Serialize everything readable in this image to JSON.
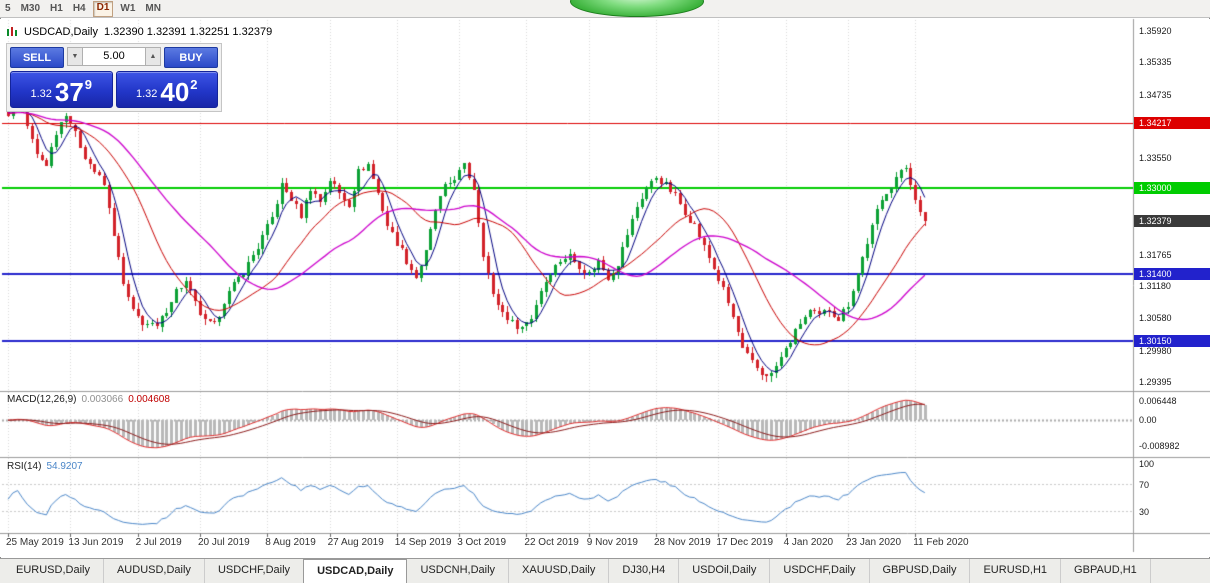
{
  "toolbar": {
    "timeframes": [
      "5",
      "M30",
      "H1",
      "H4",
      "D1",
      "W1",
      "MN"
    ],
    "active_timeframe": "D1"
  },
  "window": {
    "title_symbol": "USDCAD,Daily",
    "title_ohlc": "1.32390 1.32391 1.32251 1.32379"
  },
  "trade_panel": {
    "sell_label": "SELL",
    "buy_label": "BUY",
    "volume": "5.00",
    "volume_down_icon": "▼",
    "volume_up_icon": "▲",
    "sell_price": {
      "prefix": "1.32",
      "big": "37",
      "sup": "9"
    },
    "buy_price": {
      "prefix": "1.32",
      "big": "40",
      "sup": "2"
    }
  },
  "chart_data": {
    "type": "candlestick",
    "symbol": "USDCAD",
    "timeframe": "Daily",
    "current_bar": {
      "open": "1.32390",
      "high": "1.32391",
      "low": "1.32251",
      "close": "1.32379"
    },
    "y_axis": {
      "top_price": 1.3592,
      "bottom_price": 1.29395,
      "ticks": [
        "1.35920",
        "1.35335",
        "1.34735",
        "1.33550",
        "1.31765",
        "1.31180",
        "1.30580",
        "1.29980",
        "1.29395"
      ]
    },
    "price_lines": [
      {
        "label": "1.34217",
        "price": 1.34217,
        "color": "#dd0000",
        "width": 1
      },
      {
        "label": "1.33000",
        "price": 1.33,
        "color": "#00cc00",
        "width": 2
      },
      {
        "label": "1.31400",
        "price": 1.314,
        "color": "#2222cc",
        "width": 2
      },
      {
        "label": "1.30150",
        "price": 1.3015,
        "color": "#2222cc",
        "width": 2
      }
    ],
    "current_price": {
      "label": "1.32379",
      "price": 1.32379,
      "color": "#3a3a3a"
    },
    "x_labels": [
      {
        "label": "25 May 2019",
        "bar": 0
      },
      {
        "label": "13 Jun 2019",
        "bar": 13
      },
      {
        "label": "2 Jul 2019",
        "bar": 27
      },
      {
        "label": "20 Jul 2019",
        "bar": 40
      },
      {
        "label": "8 Aug 2019",
        "bar": 54
      },
      {
        "label": "27 Aug 2019",
        "bar": 67
      },
      {
        "label": "14 Sep 2019",
        "bar": 81
      },
      {
        "label": "3 Oct 2019",
        "bar": 94
      },
      {
        "label": "22 Oct 2019",
        "bar": 108
      },
      {
        "label": "9 Nov 2019",
        "bar": 121
      },
      {
        "label": "28 Nov 2019",
        "bar": 135
      },
      {
        "label": "17 Dec 2019",
        "bar": 148
      },
      {
        "label": "4 Jan 2020",
        "bar": 162
      },
      {
        "label": "23 Jan 2020",
        "bar": 175
      },
      {
        "label": "11 Feb 2020",
        "bar": 189
      }
    ],
    "bar_count": 192,
    "close_anchors": [
      [
        0,
        1.344
      ],
      [
        2,
        1.3465
      ],
      [
        4,
        1.3415
      ],
      [
        6,
        1.336
      ],
      [
        8,
        1.3345
      ],
      [
        10,
        1.3405
      ],
      [
        12,
        1.344
      ],
      [
        14,
        1.34
      ],
      [
        16,
        1.336
      ],
      [
        18,
        1.333
      ],
      [
        20,
        1.3305
      ],
      [
        22,
        1.3215
      ],
      [
        24,
        1.312
      ],
      [
        26,
        1.307
      ],
      [
        28,
        1.305
      ],
      [
        31,
        1.304
      ],
      [
        33,
        1.3075
      ],
      [
        35,
        1.311
      ],
      [
        37,
        1.3125
      ],
      [
        39,
        1.3085
      ],
      [
        41,
        1.305
      ],
      [
        43,
        1.3045
      ],
      [
        45,
        1.309
      ],
      [
        47,
        1.312
      ],
      [
        49,
        1.3145
      ],
      [
        52,
        1.319
      ],
      [
        55,
        1.3245
      ],
      [
        57,
        1.3305
      ],
      [
        59,
        1.328
      ],
      [
        61,
        1.325
      ],
      [
        63,
        1.33
      ],
      [
        65,
        1.3275
      ],
      [
        67,
        1.3315
      ],
      [
        69,
        1.329
      ],
      [
        71,
        1.327
      ],
      [
        73,
        1.333
      ],
      [
        75,
        1.3345
      ],
      [
        77,
        1.329
      ],
      [
        79,
        1.323
      ],
      [
        81,
        1.32
      ],
      [
        83,
        1.3165
      ],
      [
        85,
        1.3135
      ],
      [
        87,
        1.318
      ],
      [
        89,
        1.326
      ],
      [
        91,
        1.33
      ],
      [
        93,
        1.332
      ],
      [
        95,
        1.334
      ],
      [
        97,
        1.33
      ],
      [
        99,
        1.318
      ],
      [
        101,
        1.31
      ],
      [
        103,
        1.307
      ],
      [
        105,
        1.305
      ],
      [
        107,
        1.3042
      ],
      [
        109,
        1.306
      ],
      [
        111,
        1.311
      ],
      [
        113,
        1.3145
      ],
      [
        115,
        1.3165
      ],
      [
        117,
        1.3175
      ],
      [
        119,
        1.3155
      ],
      [
        121,
        1.314
      ],
      [
        123,
        1.3165
      ],
      [
        125,
        1.3135
      ],
      [
        127,
        1.316
      ],
      [
        129,
        1.3215
      ],
      [
        131,
        1.3265
      ],
      [
        133,
        1.33
      ],
      [
        135,
        1.332
      ],
      [
        137,
        1.3305
      ],
      [
        139,
        1.3285
      ],
      [
        141,
        1.3255
      ],
      [
        143,
        1.323
      ],
      [
        145,
        1.319
      ],
      [
        147,
        1.315
      ],
      [
        149,
        1.311
      ],
      [
        151,
        1.306
      ],
      [
        153,
        1.3
      ],
      [
        155,
        1.2975
      ],
      [
        157,
        1.2955
      ],
      [
        159,
        1.2952
      ],
      [
        161,
        1.2985
      ],
      [
        163,
        1.3015
      ],
      [
        165,
        1.305
      ],
      [
        167,
        1.307
      ],
      [
        169,
        1.3062
      ],
      [
        171,
        1.3075
      ],
      [
        173,
        1.3058
      ],
      [
        175,
        1.3085
      ],
      [
        177,
        1.314
      ],
      [
        179,
        1.32
      ],
      [
        181,
        1.3255
      ],
      [
        183,
        1.3295
      ],
      [
        185,
        1.332
      ],
      [
        187,
        1.3338
      ],
      [
        188,
        1.331
      ],
      [
        189,
        1.3278
      ],
      [
        190,
        1.3255
      ],
      [
        191,
        1.3238
      ]
    ],
    "candle_colors": {
      "up": "#0ca135",
      "down": "#d2222a"
    },
    "moving_averages": [
      {
        "period": 5,
        "color": "#000080"
      },
      {
        "period": 18,
        "color": "#c80000"
      },
      {
        "period": 34,
        "color": "#cc00cc"
      }
    ],
    "macd": {
      "label": "MACD(12,26,9)",
      "value_main": "0.003066",
      "value_signal": "0.004608",
      "axis_labels": [
        "0.006448",
        "0.00",
        "-0.008982"
      ],
      "histogram_color": "#b8b8b8",
      "macd_color": "#e03030",
      "signal_color": "#8b1a1a"
    },
    "rsi": {
      "label": "RSI(14)",
      "value": "54.9207",
      "axis_labels": [
        "100",
        "70",
        "30"
      ],
      "levels": [
        70,
        30
      ],
      "color": "#4a86c8"
    }
  },
  "tabs": {
    "items": [
      "EURUSD,Daily",
      "AUDUSD,Daily",
      "USDCHF,Daily",
      "USDCAD,Daily",
      "USDCNH,Daily",
      "XAUUSD,Daily",
      "DJ30,H4",
      "USDOil,Daily",
      "USDCHF,Daily",
      "GBPUSD,Daily",
      "EURUSD,H1",
      "GBPAUD,H1"
    ],
    "active_index": 3
  }
}
